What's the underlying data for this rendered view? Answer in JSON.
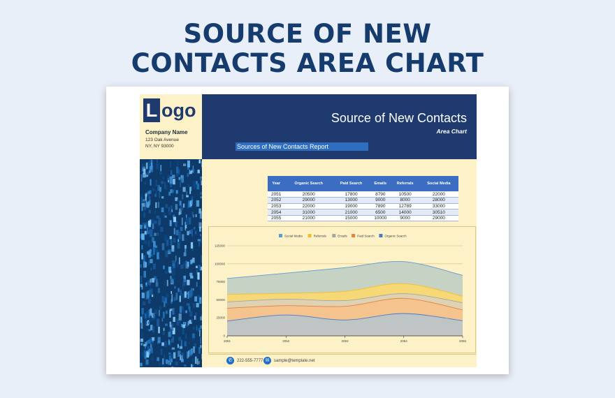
{
  "banner": {
    "line1": "SOURCE OF NEW",
    "line2": "CONTACTS AREA CHART"
  },
  "company": {
    "logo_letter": "L",
    "logo_rest": "ogo",
    "name": "Company Name",
    "address_line1": "123 Oak Avenue",
    "address_line2": "NY, NY 93000"
  },
  "header": {
    "title": "Source of New Contacts",
    "subtitle": "Area Chart",
    "report_label": "Sources of New Contacts Report"
  },
  "table": {
    "headers": [
      "Year",
      "Organic Search",
      "Paid Search",
      "Emails",
      "Referrals",
      "Social Media"
    ],
    "rows": [
      [
        "2051",
        "20500",
        "17800",
        "8790",
        "10500",
        "22000"
      ],
      [
        "2052",
        "29000",
        "13000",
        "9000",
        "8000",
        "28000"
      ],
      [
        "2053",
        "22000",
        "19000",
        "7890",
        "12789",
        "33000"
      ],
      [
        "2054",
        "31000",
        "21000",
        "6500",
        "14000",
        "30510"
      ],
      [
        "2055",
        "21000",
        "15000",
        "10000",
        "9000",
        "29000"
      ]
    ]
  },
  "chart_data": {
    "type": "area",
    "stacked": true,
    "categories": [
      "2051",
      "2052",
      "2053",
      "2054",
      "2055"
    ],
    "ylim": [
      0,
      125000
    ],
    "yticks": [
      "0",
      "25000",
      "50000",
      "75000",
      "100000",
      "125000"
    ],
    "grid": true,
    "legend_position": "top",
    "series": [
      {
        "name": "Organic Search",
        "color": "#bcc5c8",
        "values": [
          20500,
          29000,
          22000,
          31000,
          21000
        ]
      },
      {
        "name": "Paid Search",
        "color": "#f6c28b",
        "values": [
          17800,
          13000,
          19000,
          21000,
          15000
        ]
      },
      {
        "name": "Emails",
        "color": "#dcd2b6",
        "values": [
          8790,
          9000,
          7890,
          6500,
          10000
        ]
      },
      {
        "name": "Referrals",
        "color": "#fad873",
        "values": [
          10500,
          8000,
          12789,
          14000,
          9000
        ]
      },
      {
        "name": "Social Media",
        "color": "#c3d0c4",
        "values": [
          22000,
          28000,
          33000,
          30510,
          29000
        ]
      }
    ],
    "line_colors": {
      "Organic Search": "#4a7ac8",
      "Paid Search": "#e6833c",
      "Emails": "#a5a5a5",
      "Referrals": "#f2bf2a",
      "Social Media": "#5d9bd3"
    },
    "legend_order": [
      "Social Media",
      "Referrals",
      "Emails",
      "Paid Search",
      "Organic Search"
    ]
  },
  "footer": {
    "phone": "222-555-7777",
    "email": "sample@template.net"
  }
}
